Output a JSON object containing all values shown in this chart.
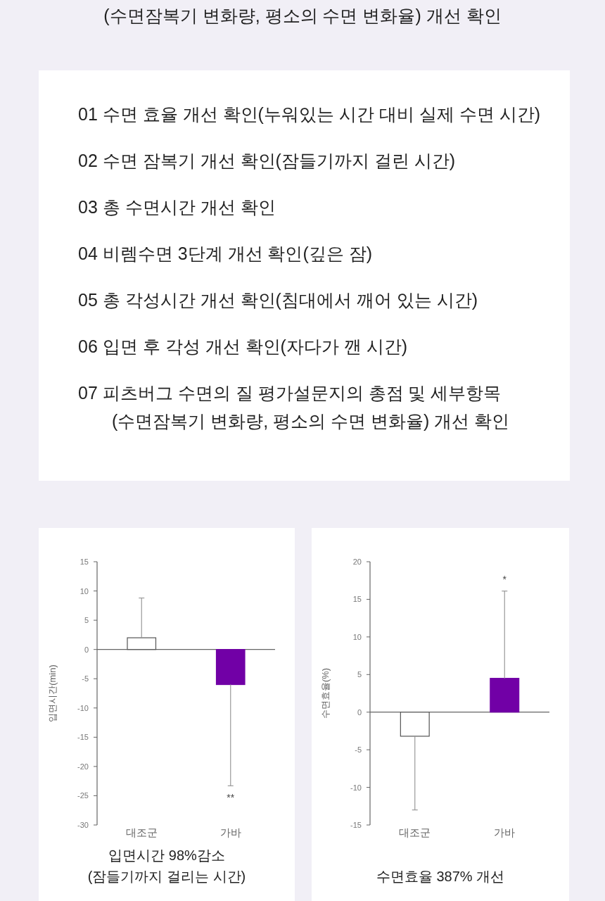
{
  "chart_data": [
    {
      "type": "other",
      "title": "(수면잠복기 변화량, 평소의 수면 변화율)  개선 확인",
      "annotations": [
        "01 수면 효율 개선 확인(누워있는 시간 대비 실제 수면 시간)",
        "02 수면 잠복기 개선 확인(잠들기까지 걸린 시간)",
        "03 총 수면시간 개선 확인",
        "04 비렘수면 3단계 개선 확인(깊은 잠)",
        "05 총 각성시간 개선 확인(침대에서 깨어 있는 시간)",
        "06 입면 후 각성 개선 확인(자다가 깬 시간)",
        "07 피츠버그 수면의 질 평가설문지의 총점 및 세부항목\n(수면잠복기 변화량, 평소의 수면 변화율) 개선 확인"
      ]
    },
    {
      "type": "bar",
      "title": "입면시간 98%감소\n(잠들기까지 걸리는 시간)",
      "ylabel": "입면시간(min)",
      "categories": [
        "대조군",
        "가바"
      ],
      "values": [
        2,
        -6
      ],
      "colors": [
        "#ffffff",
        "#7100a6"
      ],
      "errors": [
        [
          2,
          8.8
        ],
        [
          -23.3,
          -6
        ]
      ],
      "ylim": [
        -30,
        15
      ],
      "yticks": [
        -30,
        -25,
        -20,
        -15,
        -10,
        -5,
        0,
        5,
        10,
        15
      ],
      "annotations": [
        {
          "text": "**",
          "x": "가바",
          "y": -23.3
        }
      ]
    },
    {
      "type": "bar",
      "title": "수면효율 387% 개선",
      "ylabel": "수면효율(%)",
      "categories": [
        "대조군",
        "가바"
      ],
      "values": [
        -3.2,
        4.5
      ],
      "colors": [
        "#ffffff",
        "#7100a6"
      ],
      "errors": [
        [
          -13,
          -3.2
        ],
        [
          4.5,
          16.1
        ]
      ],
      "ylim": [
        -15,
        20
      ],
      "yticks": [
        -15,
        -10,
        -5,
        0,
        5,
        10,
        15,
        20
      ],
      "annotations": [
        {
          "text": "*",
          "x": "가바",
          "y": 16.1
        }
      ]
    }
  ]
}
